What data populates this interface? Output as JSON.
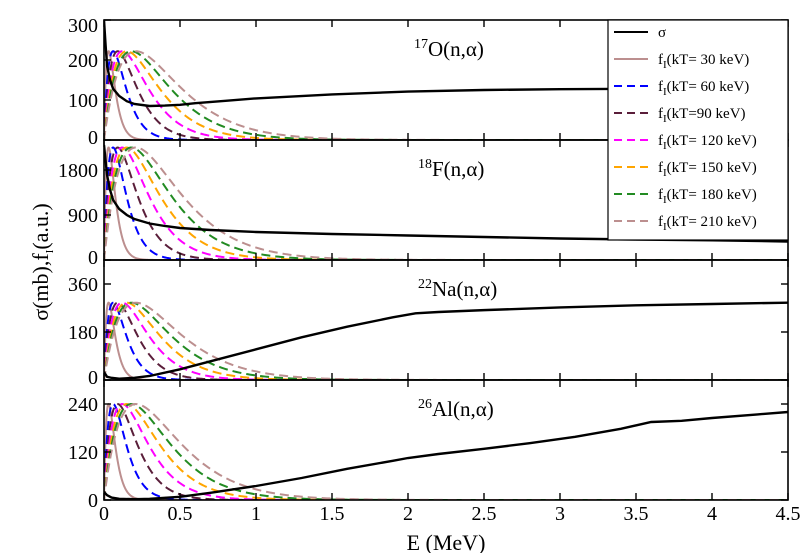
{
  "chart_data": {
    "type": "line",
    "xlabel_main": "E (MeV)",
    "ylabel_parts": {
      "a": "σ(mb),f",
      "sub": "I",
      "b": "(a.u.)"
    },
    "x_ticks": [
      "0",
      "0.5",
      "1",
      "1.5",
      "2",
      "2.5",
      "3",
      "3.5",
      "4",
      "4.5"
    ],
    "x_tick_values": [
      0,
      0.5,
      1,
      1.5,
      2,
      2.5,
      3,
      3.5,
      4,
      4.5
    ],
    "xlim": [
      0,
      4.5
    ],
    "grid": false,
    "legend_placement": "top-right",
    "legend": [
      {
        "sym": "σ",
        "sub": "",
        "rest": "",
        "color": "#000000",
        "dash": "solid"
      },
      {
        "sym": "f",
        "sub": "I",
        "rest": "(kT= 30 keV)",
        "color": "#bc8f8f",
        "dash": "solid"
      },
      {
        "sym": "f",
        "sub": "I",
        "rest": "(kT= 60 keV)",
        "color": "#0000ff",
        "dash": "dashed"
      },
      {
        "sym": "f",
        "sub": "I",
        "rest": "(kT=90 keV)",
        "color": "#5a1e3a",
        "dash": "dashed"
      },
      {
        "sym": "f",
        "sub": "I",
        "rest": "(kT= 120 keV)",
        "color": "#ff00ff",
        "dash": "dashed"
      },
      {
        "sym": "f",
        "sub": "I",
        "rest": "(kT= 150 keV)",
        "color": "#ffa500",
        "dash": "dashed"
      },
      {
        "sym": "f",
        "sub": "I",
        "rest": "(kT= 180 keV)",
        "color": "#228b22",
        "dash": "dashed"
      },
      {
        "sym": "f",
        "sub": "I",
        "rest": "(kT= 210 keV)",
        "color": "#bc8f8f",
        "dash": "dashed"
      }
    ],
    "kT_MeV": [
      0.03,
      0.06,
      0.09,
      0.12,
      0.15,
      0.18,
      0.21
    ],
    "panels": [
      {
        "label_sup": "17",
        "label_main": "O(n,α)",
        "ylim": [
          0,
          300
        ],
        "y_ticks": [
          "0",
          "100",
          "200",
          "300"
        ],
        "y_tick_values": [
          0,
          100,
          200,
          300
        ],
        "peak": 222,
        "sigma": {
          "x": [
            0.0,
            0.01,
            0.02,
            0.04,
            0.06,
            0.1,
            0.15,
            0.2,
            0.3,
            0.4,
            0.5,
            0.6,
            0.8,
            1.0,
            1.5,
            2.0,
            2.5,
            3.0,
            3.5,
            4.0,
            4.5
          ],
          "y": [
            300,
            240,
            185,
            150,
            128,
            110,
            97,
            90,
            85,
            86,
            88,
            92,
            98,
            104,
            114,
            121,
            125,
            127,
            128,
            128,
            128
          ]
        }
      },
      {
        "label_sup": "18",
        "label_main": "F(n,α)",
        "ylim": [
          0,
          2400
        ],
        "y_ticks": [
          "0",
          "900",
          "1800"
        ],
        "y_tick_values": [
          0,
          900,
          1800
        ],
        "peak": 2250,
        "sigma": {
          "x": [
            0.0,
            0.01,
            0.02,
            0.04,
            0.06,
            0.1,
            0.15,
            0.2,
            0.3,
            0.4,
            0.5,
            0.7,
            1.0,
            1.5,
            2.0,
            2.5,
            3.0,
            3.5,
            4.0,
            4.5
          ],
          "y": [
            2300,
            2000,
            1700,
            1400,
            1200,
            1020,
            900,
            820,
            730,
            680,
            640,
            600,
            560,
            520,
            490,
            460,
            430,
            410,
            395,
            370
          ]
        }
      },
      {
        "label_sup": "22",
        "label_main": "Na(n,α)",
        "ylim": [
          0,
          450
        ],
        "y_ticks": [
          "0",
          "180",
          "360"
        ],
        "y_tick_values": [
          0,
          180,
          360
        ],
        "peak": 290,
        "sigma": {
          "x": [
            0.0,
            0.02,
            0.05,
            0.1,
            0.2,
            0.3,
            0.5,
            0.7,
            1.0,
            1.3,
            1.6,
            1.9,
            2.05,
            2.2,
            2.5,
            3.0,
            3.5,
            4.0,
            4.5
          ],
          "y": [
            30,
            12,
            8,
            5,
            8,
            15,
            40,
            70,
            115,
            160,
            200,
            235,
            250,
            255,
            262,
            272,
            280,
            285,
            290
          ]
        }
      },
      {
        "label_sup": "26",
        "label_main": "Al(n,α)",
        "ylim": [
          0,
          300
        ],
        "y_ticks": [
          "0",
          "120",
          "240"
        ],
        "y_tick_values": [
          0,
          120,
          240
        ],
        "peak": 240,
        "sigma": {
          "x": [
            0.0,
            0.02,
            0.05,
            0.1,
            0.2,
            0.3,
            0.5,
            0.7,
            1.0,
            1.3,
            1.6,
            1.9,
            2.0,
            2.2,
            2.5,
            2.8,
            3.1,
            3.4,
            3.6,
            3.8,
            4.0,
            4.3,
            4.5
          ],
          "y": [
            20,
            12,
            6,
            3,
            2,
            3,
            8,
            18,
            35,
            55,
            78,
            98,
            105,
            115,
            128,
            142,
            158,
            178,
            195,
            198,
            205,
            214,
            220
          ]
        }
      }
    ]
  }
}
